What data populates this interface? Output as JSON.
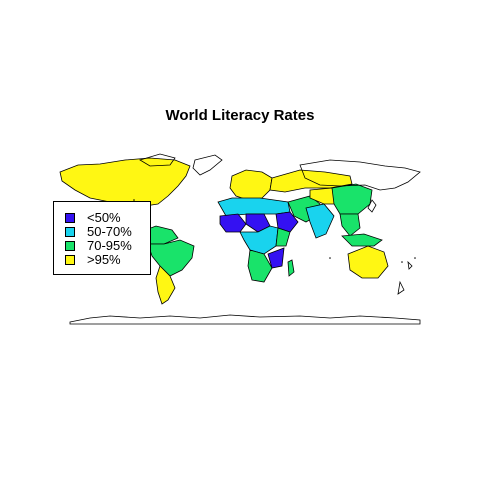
{
  "title": "World Literacy Rates",
  "colors": {
    "lt50": "#3411f2",
    "r50_70": "#19d3ee",
    "r70_95": "#19e36a",
    "gt95": "#fff713",
    "unassigned": "#ffffff",
    "outline": "#000000"
  },
  "legend": {
    "placement": "left",
    "items": [
      {
        "label": "<50%",
        "color": "#3411f2"
      },
      {
        "label": "50-70%",
        "color": "#19d3ee"
      },
      {
        "label": "70-95%",
        "color": "#19e36a"
      },
      {
        "label": ">95%",
        "color": "#fff713"
      }
    ]
  },
  "chart_data": {
    "type": "choropleth",
    "classes": [
      "<50%",
      "50-70%",
      "70-95%",
      ">95%"
    ],
    "regions": [
      {
        "region": "North America",
        "class": ">95%"
      },
      {
        "region": "Mexico",
        "class": "70-95%"
      },
      {
        "region": "Central America",
        "class": "70-95%"
      },
      {
        "region": "Northern South America",
        "class": "70-95%"
      },
      {
        "region": "Brazil",
        "class": "70-95%"
      },
      {
        "region": "Southern Cone",
        "class": ">95%"
      },
      {
        "region": "Europe",
        "class": ">95%"
      },
      {
        "region": "Russia",
        "class": ">95%"
      },
      {
        "region": "North Africa",
        "class": "50-70%"
      },
      {
        "region": "West Africa",
        "class": "<50%"
      },
      {
        "region": "Sahel",
        "class": "<50%"
      },
      {
        "region": "Ethiopia",
        "class": "<50%"
      },
      {
        "region": "Central Africa",
        "class": "50-70%"
      },
      {
        "region": "East Africa",
        "class": "70-95%"
      },
      {
        "region": "Mozambique",
        "class": "<50%"
      },
      {
        "region": "Southern Africa",
        "class": "70-95%"
      },
      {
        "region": "Madagascar",
        "class": "70-95%"
      },
      {
        "region": "Middle East",
        "class": "70-95%"
      },
      {
        "region": "South Asia",
        "class": "50-70%"
      },
      {
        "region": "Central Asia",
        "class": ">95%"
      },
      {
        "region": "China",
        "class": "70-95%"
      },
      {
        "region": "Southeast Asia",
        "class": "70-95%"
      },
      {
        "region": "Indonesia",
        "class": "70-95%"
      },
      {
        "region": "Australia",
        "class": ">95%"
      }
    ]
  }
}
